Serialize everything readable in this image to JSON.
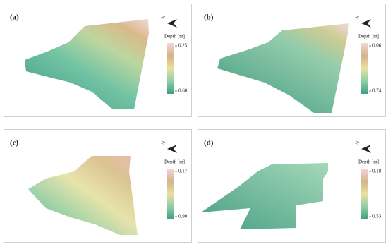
{
  "panels": [
    {
      "label": "(a)",
      "legend_title": "Depth [m]",
      "top_label": "0.25",
      "bottom_label": "0.60"
    },
    {
      "label": "(b)",
      "legend_title": "Depth [m]",
      "top_label": "0.06",
      "bottom_label": "0.74"
    },
    {
      "label": "(c)",
      "legend_title": "Depth [m]",
      "top_label": "0.17",
      "bottom_label": "0.90"
    },
    {
      "label": "(d)",
      "legend_title": "Depth [m]",
      "top_label": "0.18",
      "bottom_label": "0.53"
    }
  ]
}
